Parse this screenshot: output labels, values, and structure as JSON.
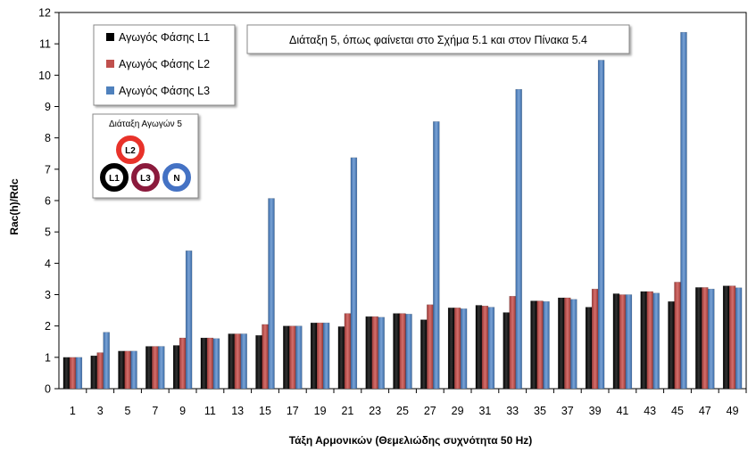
{
  "chart_data": {
    "type": "bar",
    "title": "",
    "xlabel": "Τάξη Αρμονικών (Θεμελιώδης συχνότητα 50 Hz)",
    "ylabel": "Rac(h)/Rdc",
    "ylim": [
      0,
      12
    ],
    "yticks": [
      0,
      1,
      2,
      3,
      4,
      5,
      6,
      7,
      8,
      9,
      10,
      11,
      12
    ],
    "grid": false,
    "legend_position": "top-left",
    "categories": [
      "1",
      "3",
      "5",
      "7",
      "9",
      "11",
      "13",
      "15",
      "17",
      "19",
      "21",
      "23",
      "25",
      "27",
      "29",
      "31",
      "33",
      "35",
      "37",
      "39",
      "41",
      "43",
      "45",
      "47",
      "49"
    ],
    "series": [
      {
        "name": "Αγωγός Φάσης L1",
        "color": "#000000",
        "values": [
          1.0,
          1.05,
          1.2,
          1.35,
          1.38,
          1.62,
          1.75,
          1.7,
          2.0,
          2.1,
          1.98,
          2.3,
          2.4,
          2.2,
          2.58,
          2.66,
          2.43,
          2.8,
          2.9,
          2.6,
          3.03,
          3.1,
          2.78,
          3.23,
          3.28
        ]
      },
      {
        "name": "Αγωγός Φάσης L2",
        "color": "#c0504d",
        "values": [
          1.0,
          1.15,
          1.2,
          1.35,
          1.62,
          1.62,
          1.75,
          2.05,
          2.0,
          2.1,
          2.4,
          2.3,
          2.4,
          2.68,
          2.58,
          2.64,
          2.95,
          2.8,
          2.9,
          3.18,
          3.0,
          3.1,
          3.4,
          3.23,
          3.28
        ]
      },
      {
        "name": "Αγωγός Φάσης L3",
        "color": "#4f81bd",
        "values": [
          1.0,
          1.8,
          1.2,
          1.35,
          4.4,
          1.6,
          1.75,
          6.07,
          2.0,
          2.1,
          7.37,
          2.28,
          2.38,
          8.52,
          2.55,
          2.6,
          9.55,
          2.78,
          2.85,
          10.48,
          3.0,
          3.05,
          11.37,
          3.18,
          3.22
        ]
      }
    ]
  },
  "annotation": {
    "text": "Διάταξη 5, όπως φαίνεται στο Σχήμα 5.1 και στον Πίνακα 5.4"
  },
  "inset": {
    "title": "Διάταξη Αγωγών 5",
    "conductors": [
      {
        "label": "L2",
        "color": "#e8322a"
      },
      {
        "label": "L1",
        "color": "#000000"
      },
      {
        "label": "L3",
        "color": "#8b1a3c"
      },
      {
        "label": "N",
        "color": "#4472c4"
      }
    ]
  }
}
